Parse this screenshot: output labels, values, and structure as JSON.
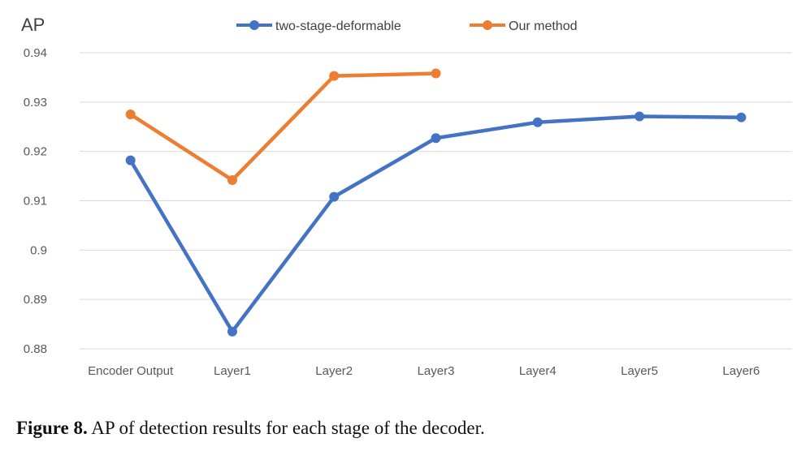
{
  "chart_data": {
    "type": "line",
    "title": "",
    "xlabel": "",
    "ylabel": "AP",
    "categories": [
      "Encoder Output",
      "Layer1",
      "Layer2",
      "Layer3",
      "Layer4",
      "Layer5",
      "Layer6"
    ],
    "ylim": [
      0.88,
      0.94
    ],
    "yticks": [
      "0.88",
      "0.89",
      "0.9",
      "0.91",
      "0.92",
      "0.93",
      "0.94"
    ],
    "grid": true,
    "legend_position": "top",
    "series": [
      {
        "name": "two-stage-deformable",
        "color": "#4472C4",
        "values": [
          0.9182,
          0.8835,
          0.9108,
          0.9227,
          0.9259,
          0.9271,
          0.9269
        ]
      },
      {
        "name": "Our method",
        "color": "#ED7D31",
        "values": [
          0.9275,
          0.9142,
          0.9353,
          0.9358,
          null,
          null,
          null
        ]
      }
    ]
  },
  "caption": {
    "label": "Figure 8.",
    "text": "AP of detection results for each stage of the decoder."
  }
}
